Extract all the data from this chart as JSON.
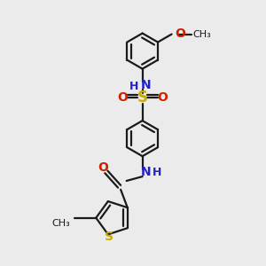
{
  "bg_color": "#ebebeb",
  "bond_color": "#1a1a1a",
  "bond_width": 1.6,
  "colors": {
    "N": "#2020cc",
    "O": "#cc2200",
    "S_thio": "#ccaa00",
    "S_sulfo": "#ccaa00",
    "C": "#1a1a1a",
    "H": "#2020cc"
  },
  "xlim": [
    -1.2,
    1.3
  ],
  "ylim": [
    -1.75,
    1.85
  ]
}
